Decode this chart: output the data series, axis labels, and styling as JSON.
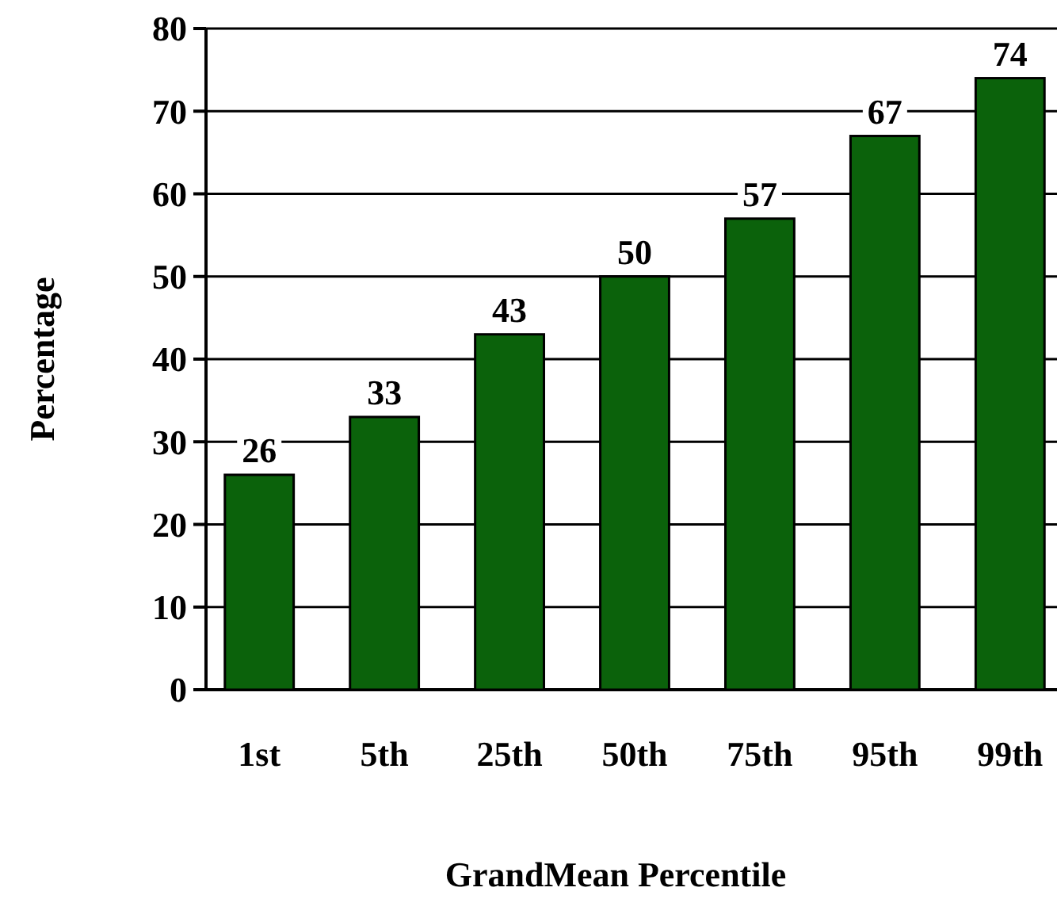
{
  "chart_data": {
    "type": "bar",
    "xlabel": "GrandMean Percentile",
    "ylabel": "Percentage",
    "categories": [
      "1st",
      "5th",
      "25th",
      "50th",
      "75th",
      "95th",
      "99th"
    ],
    "values": [
      26,
      33,
      43,
      50,
      57,
      67,
      74
    ],
    "color": "#0b620b",
    "ylim": [
      0,
      80
    ],
    "yticks": [
      0,
      10,
      20,
      30,
      40,
      50,
      60,
      70,
      80
    ],
    "grid": "y",
    "data_labels": true
  }
}
